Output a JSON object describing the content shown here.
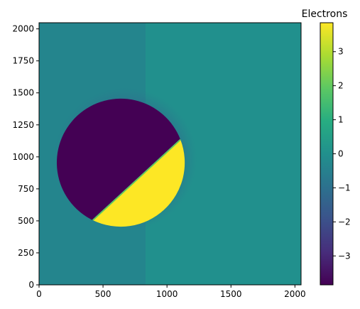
{
  "chart_data": {
    "type": "heatmap",
    "title": "",
    "xlabel": "",
    "ylabel": "",
    "xlim": [
      0,
      2048
    ],
    "ylim": [
      0,
      2048
    ],
    "xticks": [
      0,
      500,
      1000,
      1500,
      2000
    ],
    "yticks": [
      0,
      250,
      500,
      750,
      1000,
      1250,
      1500,
      1750,
      2000
    ],
    "background_value": 0,
    "colormap": "viridis",
    "features": [
      {
        "name": "dark half-disk",
        "value": -3.8,
        "circle_center": [
          675,
          980
        ],
        "circle_radius": 500,
        "cut_line": [
          [
            420,
            505
          ],
          [
            1105,
            1135
          ]
        ],
        "side": "upper-left"
      },
      {
        "name": "bright half-disk",
        "value": 3.8,
        "circle_center": [
          675,
          980
        ],
        "circle_radius": 500,
        "cut_line": [
          [
            420,
            505
          ],
          [
            1105,
            1135
          ]
        ],
        "side": "lower-right"
      }
    ],
    "colorbar": {
      "label": "Electrons",
      "min": -3.85,
      "max": 3.85,
      "ticks": [
        -3,
        -2,
        -1,
        0,
        1,
        2,
        3
      ]
    }
  },
  "colors": {
    "dark": "#440154",
    "background": "#21908d",
    "bright": "#fde725"
  }
}
